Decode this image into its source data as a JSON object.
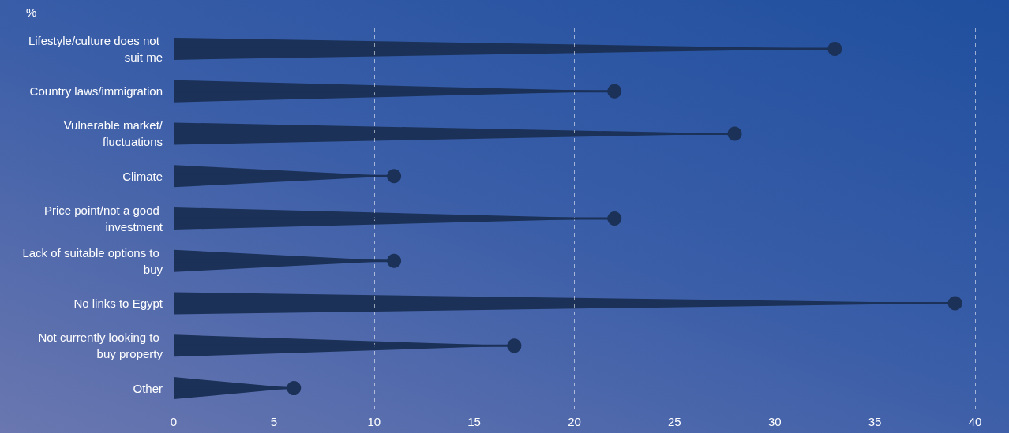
{
  "chart_data": {
    "type": "lollipop",
    "orientation": "horizontal",
    "xlabel": "%",
    "categories": [
      "Lifestyle/culture does not suit me",
      "Country laws/immigration",
      "Vulnerable market/fluctuations",
      "Climate",
      "Price point/not a good investment",
      "Lack of suitable options to buy",
      "No links to Egypt",
      "Not currently looking to buy property",
      "Other"
    ],
    "values": [
      33,
      22,
      28,
      11,
      22,
      11,
      39,
      17,
      6
    ],
    "color": "#1b3157",
    "marker": "circle",
    "xlim": [
      0,
      40
    ],
    "xticks": [
      0,
      5,
      10,
      15,
      20,
      25,
      30,
      35,
      40
    ],
    "grid": "x"
  }
}
